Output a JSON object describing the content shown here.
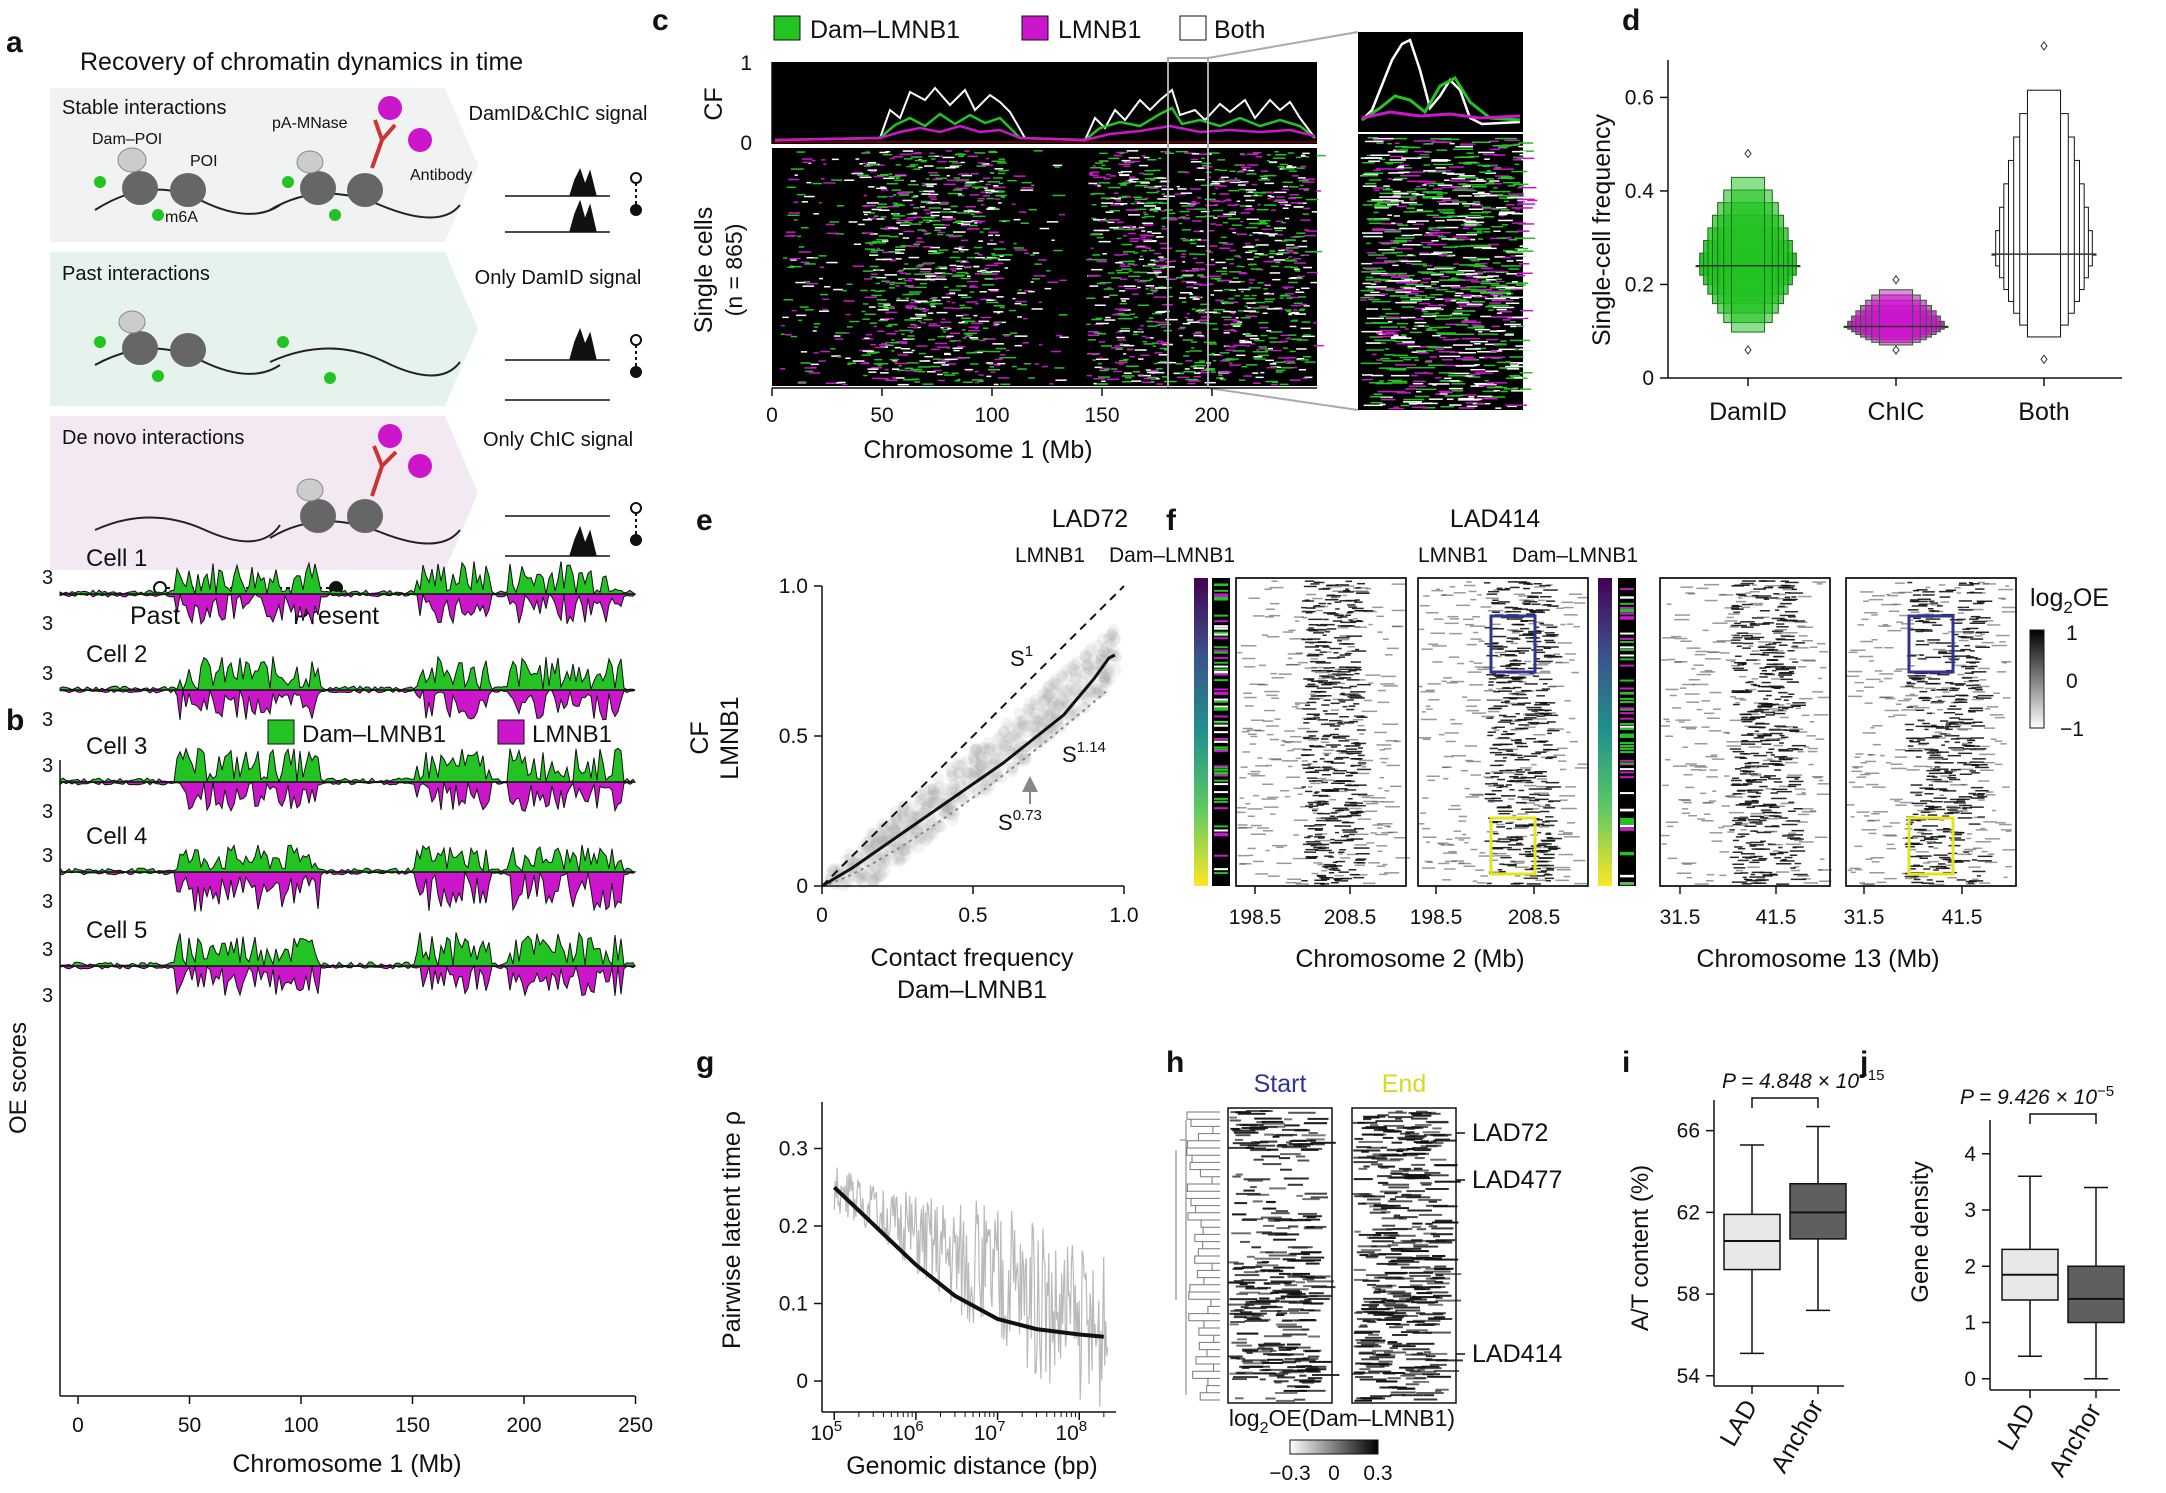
{
  "panel_letters": [
    "a",
    "b",
    "c",
    "d",
    "e",
    "f",
    "g",
    "h",
    "i",
    "j"
  ],
  "colors": {
    "dam": "#22c322",
    "lmnb1": "#cc16cc",
    "a_stable_bg": "#f1f2f2",
    "a_past_bg": "#e6f2ec",
    "a_denovo_bg": "#f3e9f3",
    "f_blue": "#2f3393",
    "f_yellow": "#e3e31e",
    "start": "#2f3393",
    "end": "#d9d91e"
  },
  "a": {
    "title": "Recovery of chromatin dynamics in time",
    "rows": [
      {
        "label": "Stable interactions",
        "signal": "DamID&ChIC signal"
      },
      {
        "label": "Past interactions",
        "signal": "Only DamID signal"
      },
      {
        "label": "De novo interactions",
        "signal": "Only ChIC signal"
      }
    ],
    "dam_poi": "Dam–POI",
    "poi": "POI",
    "pa_mnase": "pA-MNase",
    "m6a": "m6A",
    "antibody": "Antibody",
    "past": "Past",
    "present": "Present"
  },
  "b": {
    "legend": [
      "Dam–LMNB1",
      "LMNB1"
    ],
    "cells": [
      "Cell 1",
      "Cell 2",
      "Cell 3",
      "Cell 4",
      "Cell 5"
    ],
    "ytick": "3",
    "ylabel": "OE scores",
    "xlabel": "Chromosome 1 (Mb)",
    "xticks": [
      "0",
      "50",
      "100",
      "150",
      "200",
      "250"
    ]
  },
  "c": {
    "legend": [
      "Dam–LMNB1",
      "LMNB1",
      "Both"
    ],
    "cf_label": "CF",
    "cf_ticks": [
      "1",
      "0"
    ],
    "cells_label": "Single cells",
    "n_label": "(n = 865)",
    "xlabel": "Chromosome 1 (Mb)",
    "xticks": [
      "0",
      "50",
      "100",
      "150",
      "200"
    ]
  },
  "chart_data": [
    {
      "panel": "d",
      "type": "boxen",
      "ylabel": "Single-cell frequency",
      "categories": [
        "DamID",
        "ChIC",
        "Both"
      ],
      "yticks": [
        "0",
        "0.2",
        "0.4",
        "0.6"
      ],
      "ylim": [
        0,
        0.68
      ],
      "medians": [
        0.24,
        0.11,
        0.265
      ],
      "ranges": [
        [
          0.06,
          0.48
        ],
        [
          0.06,
          0.21
        ],
        [
          0.04,
          0.71
        ]
      ],
      "colors": [
        "#22c322",
        "#cc16cc",
        "#ffffff"
      ]
    },
    {
      "panel": "e",
      "type": "line",
      "xlabel": "Contact frequency",
      "xlabel2": "Dam–LMNB1",
      "ylabel": "CF",
      "ylabel2": "LMNB1",
      "xticks": [
        "0",
        "0.5",
        "1.0"
      ],
      "yticks": [
        "0",
        "0.5",
        "1.0"
      ],
      "xlim": [
        0,
        1
      ],
      "ylim": [
        0,
        1
      ],
      "annotations": {
        "s1": "S",
        "s1_exp": "1",
        "s114": "S",
        "s114_exp": "1.14",
        "s073": "S",
        "s073_exp": "0.73"
      },
      "series": [
        {
          "x": [
            0,
            0.1,
            0.2,
            0.3,
            0.4,
            0.5,
            0.6,
            0.7,
            0.8,
            0.9,
            0.95,
            0.97
          ],
          "y": [
            0,
            0.06,
            0.13,
            0.2,
            0.27,
            0.34,
            0.41,
            0.49,
            0.57,
            0.69,
            0.76,
            0.77
          ]
        }
      ]
    },
    {
      "panel": "g",
      "type": "line",
      "xlabel": "Genomic distance (bp)",
      "ylabel": "Pairwise latent time ρ",
      "yticks": [
        "0",
        "0.1",
        "0.2",
        "0.3"
      ],
      "xticks": [
        "10",
        "10",
        "10",
        "10"
      ],
      "xtick_exps": [
        "5",
        "6",
        "7",
        "8"
      ],
      "xscale": "log",
      "ylim": [
        -0.04,
        0.36
      ],
      "series": [
        {
          "x": [
            100000,
            200000,
            500000,
            1000000,
            3000000,
            10000000,
            30000000,
            100000000,
            200000000
          ],
          "y": [
            0.25,
            0.22,
            0.18,
            0.15,
            0.11,
            0.08,
            0.067,
            0.06,
            0.057
          ]
        }
      ]
    },
    {
      "panel": "i",
      "type": "box",
      "ylabel": "A/T content (%)",
      "categories": [
        "LAD",
        "Anchor"
      ],
      "yticks": [
        "54",
        "58",
        "62",
        "66"
      ],
      "ylim": [
        53.5,
        67.5
      ],
      "pvalue": "P = 4.848 × 10",
      "pvalue_exp": "−15",
      "boxes": [
        {
          "whisker_low": 55.1,
          "q1": 59.2,
          "median": 60.6,
          "q3": 61.9,
          "whisker_high": 65.3
        },
        {
          "whisker_low": 57.2,
          "q1": 60.7,
          "median": 62.0,
          "q3": 63.4,
          "whisker_high": 66.2
        }
      ],
      "colors": [
        "#e8e8e8",
        "#5f5f5f"
      ]
    },
    {
      "panel": "j",
      "type": "box",
      "ylabel": "Gene density",
      "categories": [
        "LAD",
        "Anchor"
      ],
      "yticks": [
        "0",
        "1",
        "2",
        "3",
        "4"
      ],
      "ylim": [
        -0.2,
        4.6
      ],
      "pvalue": "P = 9.426 × 10",
      "pvalue_exp": "−5",
      "boxes": [
        {
          "whisker_low": 0.4,
          "q1": 1.4,
          "median": 1.85,
          "q3": 2.3,
          "whisker_high": 3.6
        },
        {
          "whisker_low": 0.0,
          "q1": 1.0,
          "median": 1.42,
          "q3": 2.0,
          "whisker_high": 3.4
        }
      ],
      "colors": [
        "#e8e8e8",
        "#5f5f5f"
      ]
    }
  ],
  "f": {
    "groups": [
      {
        "title": "LAD72",
        "xlabel": "Chromosome 2 (Mb)",
        "ticks": [
          "198.5",
          "208.5",
          "198.5",
          "208.5"
        ]
      },
      {
        "title": "LAD414",
        "xlabel": "Chromosome 13 (Mb)",
        "ticks": [
          "31.5",
          "41.5",
          "31.5",
          "41.5"
        ]
      }
    ],
    "sub": [
      "LMNB1",
      "Dam–LMNB1"
    ],
    "cbar_title": "log",
    "cbar_sub": "2",
    "cbar_title2": "OE",
    "cbar_ticks": [
      "1",
      "0",
      "−1"
    ]
  },
  "h": {
    "start": "Start",
    "end": "End",
    "lads": [
      "LAD72",
      "LAD477",
      "LAD414"
    ],
    "xlabel": "log",
    "xlabel_sub": "2",
    "xlabel2": "OE(Dam–LMNB1)",
    "cbar_ticks": [
      "−0.3",
      "0",
      "0.3"
    ]
  }
}
